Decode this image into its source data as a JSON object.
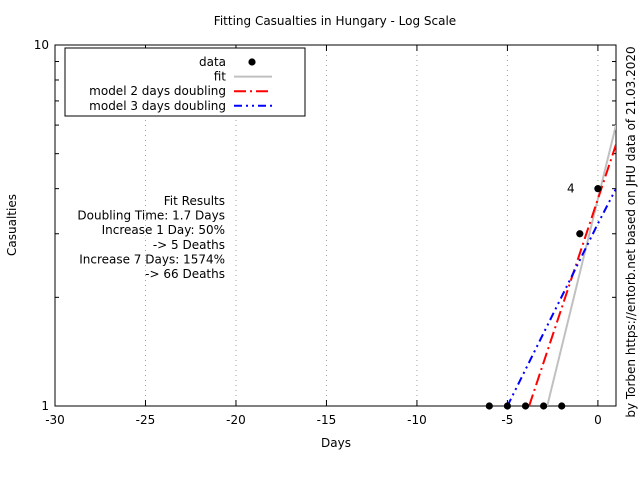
{
  "chart_data": {
    "type": "scatter",
    "title": "Fitting Casualties in Hungary - Log Scale",
    "xlabel": "Days",
    "ylabel": "Casualties",
    "side_label": "by Torben https://entorb.net based on JHU data of 21.03.2020",
    "xlim": [
      -30,
      1
    ],
    "ylim": [
      1,
      10
    ],
    "yscale": "log",
    "x_ticks": [
      -30,
      -25,
      -20,
      -15,
      -10,
      -5,
      0
    ],
    "x_tick_labels": [
      "-30",
      "-25",
      "-20",
      "-15",
      "-10",
      "-5",
      "0"
    ],
    "y_ticks": [
      1,
      10
    ],
    "y_tick_labels": [
      "1",
      "10"
    ],
    "y_minor_ticks": [
      2,
      3,
      4,
      5,
      6,
      7,
      8,
      9
    ],
    "grid": {
      "x": true,
      "y": false
    },
    "legend_position": "top-left",
    "annotation": "4",
    "annotation_at": [
      -1.5,
      4
    ],
    "fit_results": [
      "Fit Results",
      "Doubling Time: 1.7 Days",
      "Increase 1 Day: 50%",
      "-> 5 Deaths",
      "Increase 7 Days: 1574%",
      "-> 66 Deaths"
    ],
    "series": [
      {
        "name": "data",
        "kind": "points",
        "color": "#000000",
        "x": [
          -6,
          -5,
          -4,
          -3,
          -2,
          -1,
          0
        ],
        "y": [
          1,
          1,
          1,
          1,
          1,
          3,
          4
        ]
      },
      {
        "name": "fit",
        "kind": "line",
        "color": "#c0c0c0",
        "dash": "solid",
        "x": [
          -2.8,
          1
        ],
        "y": [
          1,
          6
        ]
      },
      {
        "name": "model 2 days doubling",
        "kind": "line",
        "color": "#ff0000",
        "dash": "dash-dot",
        "x": [
          -3.8,
          1
        ],
        "y": [
          1,
          5.3
        ]
      },
      {
        "name": "model 3 days doubling",
        "kind": "line",
        "color": "#0000ff",
        "dash": "dash-dot-dot",
        "x": [
          -5,
          0,
          1
        ],
        "y": [
          1,
          3.2,
          4
        ]
      }
    ]
  }
}
